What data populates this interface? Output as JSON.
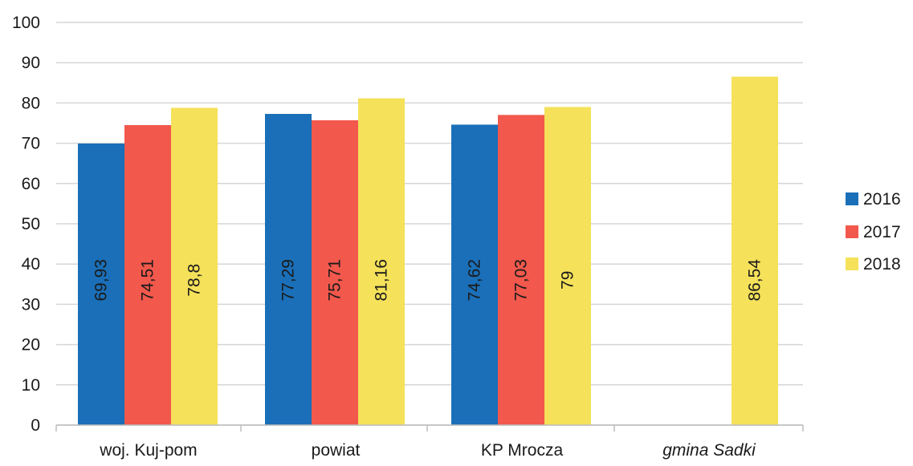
{
  "chart_data": {
    "type": "bar",
    "title": "",
    "xlabel": "",
    "ylabel": "",
    "ylim": [
      0,
      100
    ],
    "yticks": [
      0,
      10,
      20,
      30,
      40,
      50,
      60,
      70,
      80,
      90,
      100
    ],
    "ytick_labels": [
      "0",
      "10",
      "20",
      "30",
      "40",
      "50",
      "60",
      "70",
      "80",
      "90",
      "100"
    ],
    "categories": [
      "woj. Kuj-pom",
      "powiat",
      "KP Mrocza",
      "gmina Sadki"
    ],
    "series": [
      {
        "name": "2016",
        "color": "#1a6fb8",
        "values": [
          69.93,
          77.29,
          74.62,
          null
        ],
        "labels": [
          "69,93",
          "77,29",
          "74,62",
          ""
        ]
      },
      {
        "name": "2017",
        "color": "#f2584c",
        "values": [
          74.51,
          75.71,
          77.03,
          null
        ],
        "labels": [
          "74,51",
          "75,71",
          "77,03",
          ""
        ]
      },
      {
        "name": "2018",
        "color": "#f5e15a",
        "values": [
          78.8,
          81.16,
          79,
          86.54
        ],
        "labels": [
          "78,8",
          "81,16",
          "79",
          "86,54"
        ]
      }
    ],
    "grid": true,
    "legend_position": "right"
  }
}
